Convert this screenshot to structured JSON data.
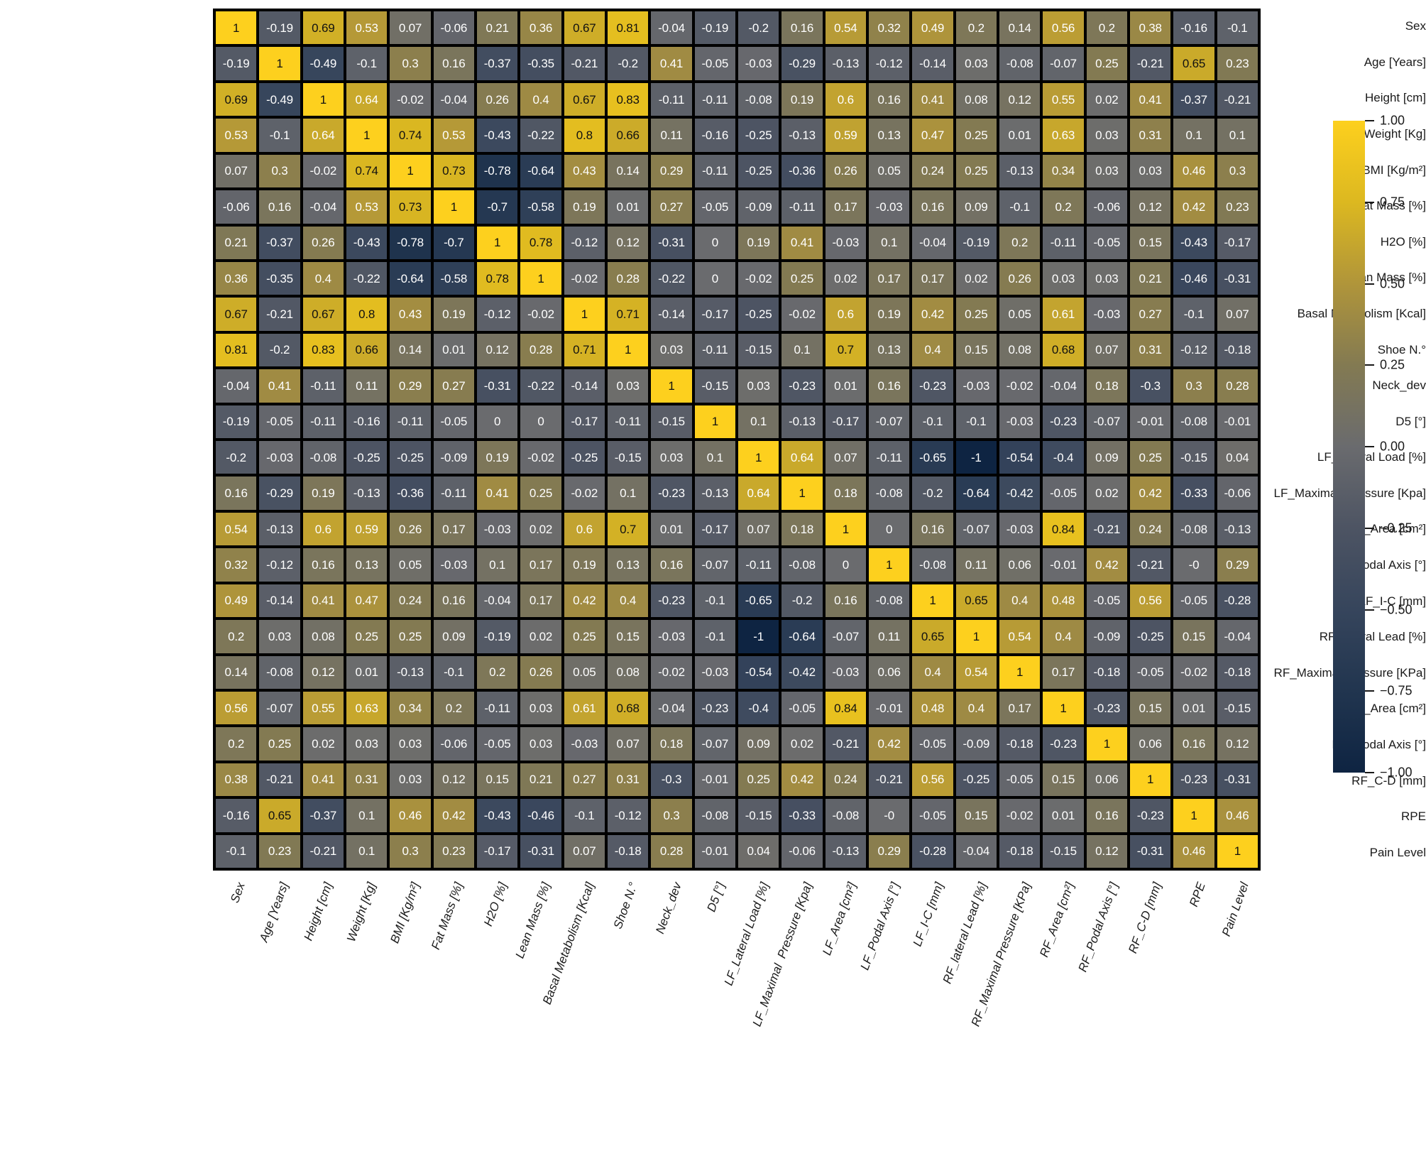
{
  "chart_data": {
    "type": "heatmap",
    "title": "",
    "xlabel": "",
    "ylabel": "",
    "labels": [
      "Sex",
      "Age [Years]",
      "Height [cm]",
      "Weight [Kg]",
      "BMI [Kg/m²]",
      "Fat Mass [%]",
      "H2O [%]",
      "Lean Mass [%]",
      "Basal Metabolism [Kcal]",
      "Shoe N.°",
      "Neck_dev",
      "D5 [°]",
      "LF_Lateral Load [%]",
      "LF_Maximal  Pressure [Kpa]",
      "LF_Area [cm²]",
      "LF_Podal Axis [°]",
      "LF_I-C [mm]",
      "RF_lateral Lead [%]",
      "RF_Maximal Pressure [KPa]",
      "RF_Area [cm²]",
      "RF_Podal Axis [°]",
      "RF_C-D [mm]",
      "RPE",
      "Pain Level"
    ],
    "matrix": [
      [
        "1",
        "-0.19",
        "0.69",
        "0.53",
        "0.07",
        "-0.06",
        "0.21",
        "0.36",
        "0.67",
        "0.81",
        "-0.04",
        "-0.19",
        "-0.2",
        "0.16",
        "0.54",
        "0.32",
        "0.49",
        "0.2",
        "0.14",
        "0.56",
        "0.2",
        "0.38",
        "-0.16",
        "-0.1"
      ],
      [
        "-0.19",
        "1",
        "-0.49",
        "-0.1",
        "0.3",
        "0.16",
        "-0.37",
        "-0.35",
        "-0.21",
        "-0.2",
        "0.41",
        "-0.05",
        "-0.03",
        "-0.29",
        "-0.13",
        "-0.12",
        "-0.14",
        "0.03",
        "-0.08",
        "-0.07",
        "0.25",
        "-0.21",
        "0.65",
        "0.23"
      ],
      [
        "0.69",
        "-0.49",
        "1",
        "0.64",
        "-0.02",
        "-0.04",
        "0.26",
        "0.4",
        "0.67",
        "0.83",
        "-0.11",
        "-0.11",
        "-0.08",
        "0.19",
        "0.6",
        "0.16",
        "0.41",
        "0.08",
        "0.12",
        "0.55",
        "0.02",
        "0.41",
        "-0.37",
        "-0.21"
      ],
      [
        "0.53",
        "-0.1",
        "0.64",
        "1",
        "0.74",
        "0.53",
        "-0.43",
        "-0.22",
        "0.8",
        "0.66",
        "0.11",
        "-0.16",
        "-0.25",
        "-0.13",
        "0.59",
        "0.13",
        "0.47",
        "0.25",
        "0.01",
        "0.63",
        "0.03",
        "0.31",
        "0.1",
        "0.1"
      ],
      [
        "0.07",
        "0.3",
        "-0.02",
        "0.74",
        "1",
        "0.73",
        "-0.78",
        "-0.64",
        "0.43",
        "0.14",
        "0.29",
        "-0.11",
        "-0.25",
        "-0.36",
        "0.26",
        "0.05",
        "0.24",
        "0.25",
        "-0.13",
        "0.34",
        "0.03",
        "0.03",
        "0.46",
        "0.3"
      ],
      [
        "-0.06",
        "0.16",
        "-0.04",
        "0.53",
        "0.73",
        "1",
        "-0.7",
        "-0.58",
        "0.19",
        "0.01",
        "0.27",
        "-0.05",
        "-0.09",
        "-0.11",
        "0.17",
        "-0.03",
        "0.16",
        "0.09",
        "-0.1",
        "0.2",
        "-0.06",
        "0.12",
        "0.42",
        "0.23"
      ],
      [
        "0.21",
        "-0.37",
        "0.26",
        "-0.43",
        "-0.78",
        "-0.7",
        "1",
        "0.78",
        "-0.12",
        "0.12",
        "-0.31",
        "0",
        "0.19",
        "0.41",
        "-0.03",
        "0.1",
        "-0.04",
        "-0.19",
        "0.2",
        "-0.11",
        "-0.05",
        "0.15",
        "-0.43",
        "-0.17"
      ],
      [
        "0.36",
        "-0.35",
        "0.4",
        "-0.22",
        "-0.64",
        "-0.58",
        "0.78",
        "1",
        "-0.02",
        "0.28",
        "-0.22",
        "0",
        "-0.02",
        "0.25",
        "0.02",
        "0.17",
        "0.17",
        "0.02",
        "0.26",
        "0.03",
        "0.03",
        "0.21",
        "-0.46",
        "-0.31"
      ],
      [
        "0.67",
        "-0.21",
        "0.67",
        "0.8",
        "0.43",
        "0.19",
        "-0.12",
        "-0.02",
        "1",
        "0.71",
        "-0.14",
        "-0.17",
        "-0.25",
        "-0.02",
        "0.6",
        "0.19",
        "0.42",
        "0.25",
        "0.05",
        "0.61",
        "-0.03",
        "0.27",
        "-0.1",
        "0.07"
      ],
      [
        "0.81",
        "-0.2",
        "0.83",
        "0.66",
        "0.14",
        "0.01",
        "0.12",
        "0.28",
        "0.71",
        "1",
        "0.03",
        "-0.11",
        "-0.15",
        "0.1",
        "0.7",
        "0.13",
        "0.4",
        "0.15",
        "0.08",
        "0.68",
        "0.07",
        "0.31",
        "-0.12",
        "-0.18"
      ],
      [
        "-0.04",
        "0.41",
        "-0.11",
        "0.11",
        "0.29",
        "0.27",
        "-0.31",
        "-0.22",
        "-0.14",
        "0.03",
        "1",
        "-0.15",
        "0.03",
        "-0.23",
        "0.01",
        "0.16",
        "-0.23",
        "-0.03",
        "-0.02",
        "-0.04",
        "0.18",
        "-0.3",
        "0.3",
        "0.28"
      ],
      [
        "-0.19",
        "-0.05",
        "-0.11",
        "-0.16",
        "-0.11",
        "-0.05",
        "0",
        "0",
        "-0.17",
        "-0.11",
        "-0.15",
        "1",
        "0.1",
        "-0.13",
        "-0.17",
        "-0.07",
        "-0.1",
        "-0.1",
        "-0.03",
        "-0.23",
        "-0.07",
        "-0.01",
        "-0.08",
        "-0.01"
      ],
      [
        "-0.2",
        "-0.03",
        "-0.08",
        "-0.25",
        "-0.25",
        "-0.09",
        "0.19",
        "-0.02",
        "-0.25",
        "-0.15",
        "0.03",
        "0.1",
        "1",
        "0.64",
        "0.07",
        "-0.11",
        "-0.65",
        "-1",
        "-0.54",
        "-0.4",
        "0.09",
        "0.25",
        "-0.15",
        "0.04"
      ],
      [
        "0.16",
        "-0.29",
        "0.19",
        "-0.13",
        "-0.36",
        "-0.11",
        "0.41",
        "0.25",
        "-0.02",
        "0.1",
        "-0.23",
        "-0.13",
        "0.64",
        "1",
        "0.18",
        "-0.08",
        "-0.2",
        "-0.64",
        "-0.42",
        "-0.05",
        "0.02",
        "0.42",
        "-0.33",
        "-0.06"
      ],
      [
        "0.54",
        "-0.13",
        "0.6",
        "0.59",
        "0.26",
        "0.17",
        "-0.03",
        "0.02",
        "0.6",
        "0.7",
        "0.01",
        "-0.17",
        "0.07",
        "0.18",
        "1",
        "0",
        "0.16",
        "-0.07",
        "-0.03",
        "0.84",
        "-0.21",
        "0.24",
        "-0.08",
        "-0.13"
      ],
      [
        "0.32",
        "-0.12",
        "0.16",
        "0.13",
        "0.05",
        "-0.03",
        "0.1",
        "0.17",
        "0.19",
        "0.13",
        "0.16",
        "-0.07",
        "-0.11",
        "-0.08",
        "0",
        "1",
        "-0.08",
        "0.11",
        "0.06",
        "-0.01",
        "0.42",
        "-0.21",
        "-0",
        "0.29"
      ],
      [
        "0.49",
        "-0.14",
        "0.41",
        "0.47",
        "0.24",
        "0.16",
        "-0.04",
        "0.17",
        "0.42",
        "0.4",
        "-0.23",
        "-0.1",
        "-0.65",
        "-0.2",
        "0.16",
        "-0.08",
        "1",
        "0.65",
        "0.4",
        "0.48",
        "-0.05",
        "0.56",
        "-0.05",
        "-0.28"
      ],
      [
        "0.2",
        "0.03",
        "0.08",
        "0.25",
        "0.25",
        "0.09",
        "-0.19",
        "0.02",
        "0.25",
        "0.15",
        "-0.03",
        "-0.1",
        "-1",
        "-0.64",
        "-0.07",
        "0.11",
        "0.65",
        "1",
        "0.54",
        "0.4",
        "-0.09",
        "-0.25",
        "0.15",
        "-0.04"
      ],
      [
        "0.14",
        "-0.08",
        "0.12",
        "0.01",
        "-0.13",
        "-0.1",
        "0.2",
        "0.26",
        "0.05",
        "0.08",
        "-0.02",
        "-0.03",
        "-0.54",
        "-0.42",
        "-0.03",
        "0.06",
        "0.4",
        "0.54",
        "1",
        "0.17",
        "-0.18",
        "-0.05",
        "-0.02",
        "-0.18"
      ],
      [
        "0.56",
        "-0.07",
        "0.55",
        "0.63",
        "0.34",
        "0.2",
        "-0.11",
        "0.03",
        "0.61",
        "0.68",
        "-0.04",
        "-0.23",
        "-0.4",
        "-0.05",
        "0.84",
        "-0.01",
        "0.48",
        "0.4",
        "0.17",
        "1",
        "-0.23",
        "0.15",
        "0.01",
        "-0.15"
      ],
      [
        "0.2",
        "0.25",
        "0.02",
        "0.03",
        "0.03",
        "-0.06",
        "-0.05",
        "0.03",
        "-0.03",
        "0.07",
        "0.18",
        "-0.07",
        "0.09",
        "0.02",
        "-0.21",
        "0.42",
        "-0.05",
        "-0.09",
        "-0.18",
        "-0.23",
        "1",
        "0.06",
        "0.16",
        "0.12"
      ],
      [
        "0.38",
        "-0.21",
        "0.41",
        "0.31",
        "0.03",
        "0.12",
        "0.15",
        "0.21",
        "0.27",
        "0.31",
        "-0.3",
        "-0.01",
        "0.25",
        "0.42",
        "0.24",
        "-0.21",
        "0.56",
        "-0.25",
        "-0.05",
        "0.15",
        "0.06",
        "1",
        "-0.23",
        "-0.31"
      ],
      [
        "-0.16",
        "0.65",
        "-0.37",
        "0.1",
        "0.46",
        "0.42",
        "-0.43",
        "-0.46",
        "-0.1",
        "-0.12",
        "0.3",
        "-0.08",
        "-0.15",
        "-0.33",
        "-0.08",
        "-0",
        "-0.05",
        "0.15",
        "-0.02",
        "0.01",
        "0.16",
        "-0.23",
        "1",
        "0.46"
      ],
      [
        "-0.1",
        "0.23",
        "-0.21",
        "0.1",
        "0.3",
        "0.23",
        "-0.17",
        "-0.31",
        "0.07",
        "-0.18",
        "0.28",
        "-0.01",
        "0.04",
        "-0.06",
        "-0.13",
        "0.29",
        "-0.28",
        "-0.04",
        "-0.18",
        "-0.15",
        "0.12",
        "-0.31",
        "0.46",
        "1"
      ]
    ],
    "value_range": [
      -1,
      1
    ],
    "grid": "on",
    "colorbar": {
      "position": "right",
      "tick_values": [
        1,
        0.75,
        0.5,
        0.25,
        0,
        -0.25,
        -0.5,
        -0.75,
        -1
      ],
      "tick_labels": [
        "1.00",
        "0.75",
        "0.50",
        "0.25",
        "0.00",
        "−0.25",
        "−0.50",
        "−0.75",
        "−1.00"
      ]
    },
    "colors": {
      "grid_line": "#000000",
      "text_on_dark": "#ffffff",
      "text_on_light": "#111111",
      "dark_text_threshold": 0.65,
      "axis_label": "#1a1a1a",
      "colormap_stops": [
        {
          "v": -1.0,
          "c": "#0e2442"
        },
        {
          "v": -0.75,
          "c": "#21354f"
        },
        {
          "v": -0.5,
          "c": "#36455c"
        },
        {
          "v": -0.25,
          "c": "#4d5463"
        },
        {
          "v": 0.0,
          "c": "#6a6b6e"
        },
        {
          "v": 0.25,
          "c": "#837a52"
        },
        {
          "v": 0.5,
          "c": "#b0953a"
        },
        {
          "v": 0.75,
          "c": "#dcb820"
        },
        {
          "v": 1.0,
          "c": "#fdd01e"
        }
      ]
    }
  }
}
